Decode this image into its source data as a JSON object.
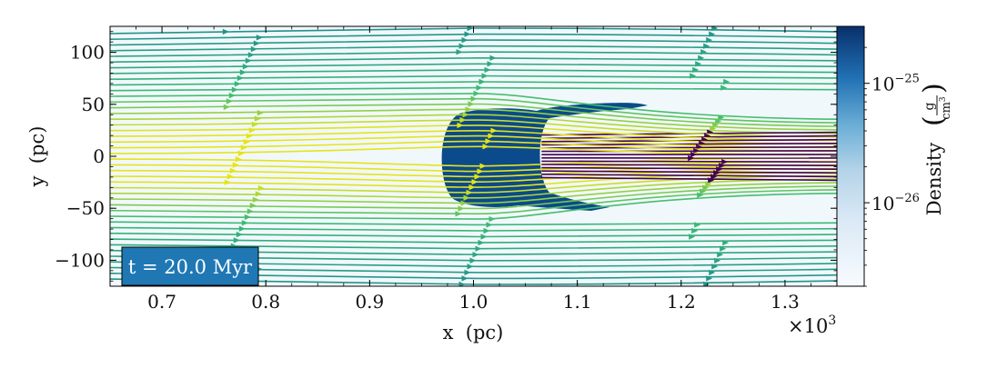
{
  "chart_data": {
    "type": "heatmap",
    "title": "",
    "xlabel": "x  (pc)",
    "ylabel": "y  (pc)",
    "x_multiplier_label": "×10",
    "x_multiplier_exp": "3",
    "xlim": [
      0.65,
      1.35
    ],
    "ylim": [
      -125,
      125
    ],
    "x_ticks": [
      0.7,
      0.8,
      0.9,
      1.0,
      1.1,
      1.2,
      1.3
    ],
    "x_tick_labels": [
      "0.7",
      "0.8",
      "0.9",
      "1.0",
      "1.1",
      "1.2",
      "1.3"
    ],
    "y_ticks": [
      100,
      50,
      0,
      -50,
      -100
    ],
    "y_tick_labels": [
      "100",
      "50",
      "0",
      "−50",
      "−100"
    ],
    "colorbar": {
      "label": "Density",
      "unit_numerator": "g",
      "unit_denominator": "cm",
      "unit_denominator_exp": "3",
      "scale": "log",
      "range": [
        2e-27,
        3e-25
      ],
      "ticks": [
        1e-26,
        1e-25
      ],
      "tick_labels": [
        {
          "base": "10",
          "exp": "−26"
        },
        {
          "base": "10",
          "exp": "−25"
        }
      ],
      "colormap": "Blues"
    },
    "annotation": "t = 20.0 Myr",
    "dense_cloud": {
      "center_x": 1.013,
      "center_y": 0,
      "radius_pc": 30,
      "log_density_max": -25
    }
  },
  "colors": {
    "background_field": "#f1f8fb",
    "cloud": "#0b4a8b",
    "annotation_box": "#1f77b4",
    "annotation_text": "#ffffff",
    "streamline_upstream": "#e5e419",
    "streamline_mid": "#3bbb75",
    "streamline_wake": "#440154"
  }
}
